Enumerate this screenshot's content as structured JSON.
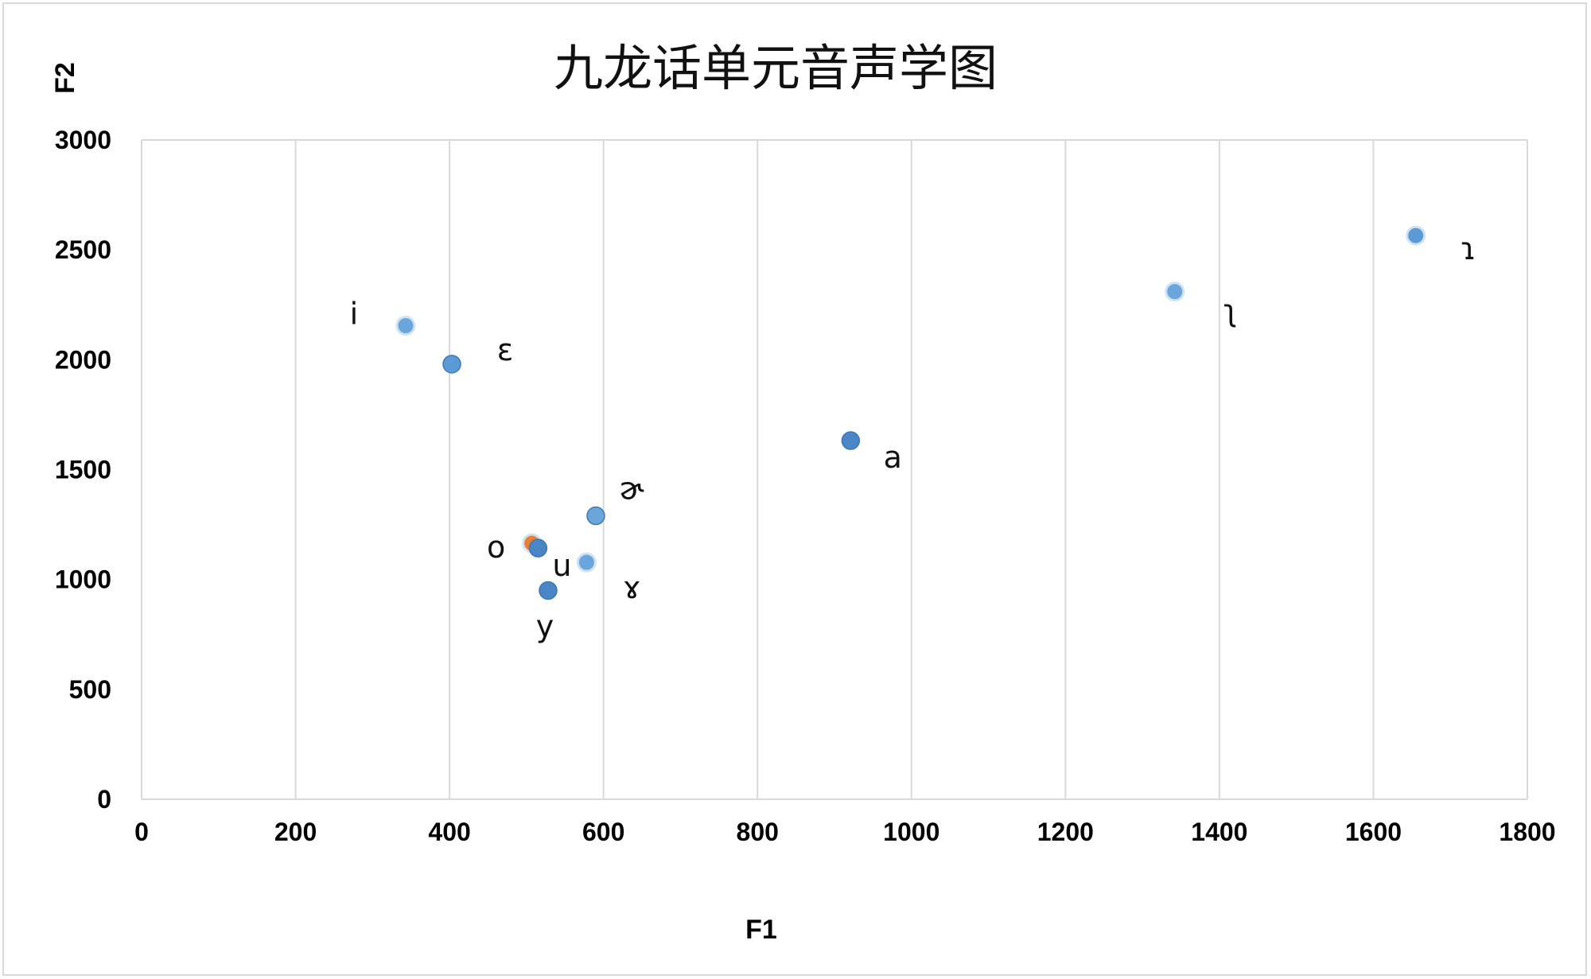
{
  "chart_data": {
    "type": "scatter",
    "title": "九龙话单元音声学图",
    "xlabel": "F1",
    "ylabel": "F2",
    "xlim": [
      0,
      1800
    ],
    "ylim": [
      0,
      3000
    ],
    "x_ticks": [
      "0",
      "200",
      "400",
      "600",
      "800",
      "1000",
      "1200",
      "1400",
      "1600",
      "1800"
    ],
    "y_ticks": [
      "0",
      "500",
      "1000",
      "1500",
      "2000",
      "2500",
      "3000"
    ],
    "grid": "vertical",
    "legend": "none",
    "colors": {
      "marker": "#5b9bd5",
      "marker_dark": "#4a86c5",
      "highlight": "#ed7d31",
      "grid": "#d9d9d9"
    },
    "points": [
      {
        "label": "i",
        "x": 343,
        "y": 2155,
        "color": "#6aa6dc",
        "ring": true
      },
      {
        "label": "ɛ",
        "x": 403,
        "y": 1980,
        "color": "#5b9bd5",
        "ring": false
      },
      {
        "label": "a",
        "x": 921,
        "y": 1632,
        "color": "#4a86c5",
        "ring": false
      },
      {
        "label": "ɚ",
        "x": 590,
        "y": 1290,
        "color": "#6aa6dc",
        "ring": false
      },
      {
        "label": "o",
        "x": 507,
        "y": 1165,
        "color": "#ed7d31",
        "ring": true
      },
      {
        "label": "u",
        "x": 515,
        "y": 1143,
        "color": "#4a86c5",
        "ring": false
      },
      {
        "label": "ɤ",
        "x": 578,
        "y": 1078,
        "color": "#6aa6dc",
        "ring": true
      },
      {
        "label": "y",
        "x": 528,
        "y": 950,
        "color": "#4a86c5",
        "ring": false
      },
      {
        "label": "ʅ",
        "x": 1342,
        "y": 2310,
        "color": "#6aa6dc",
        "ring": true
      },
      {
        "label": "ɿ",
        "x": 1655,
        "y": 2565,
        "color": "#5b9bd5",
        "ring": true
      }
    ]
  }
}
